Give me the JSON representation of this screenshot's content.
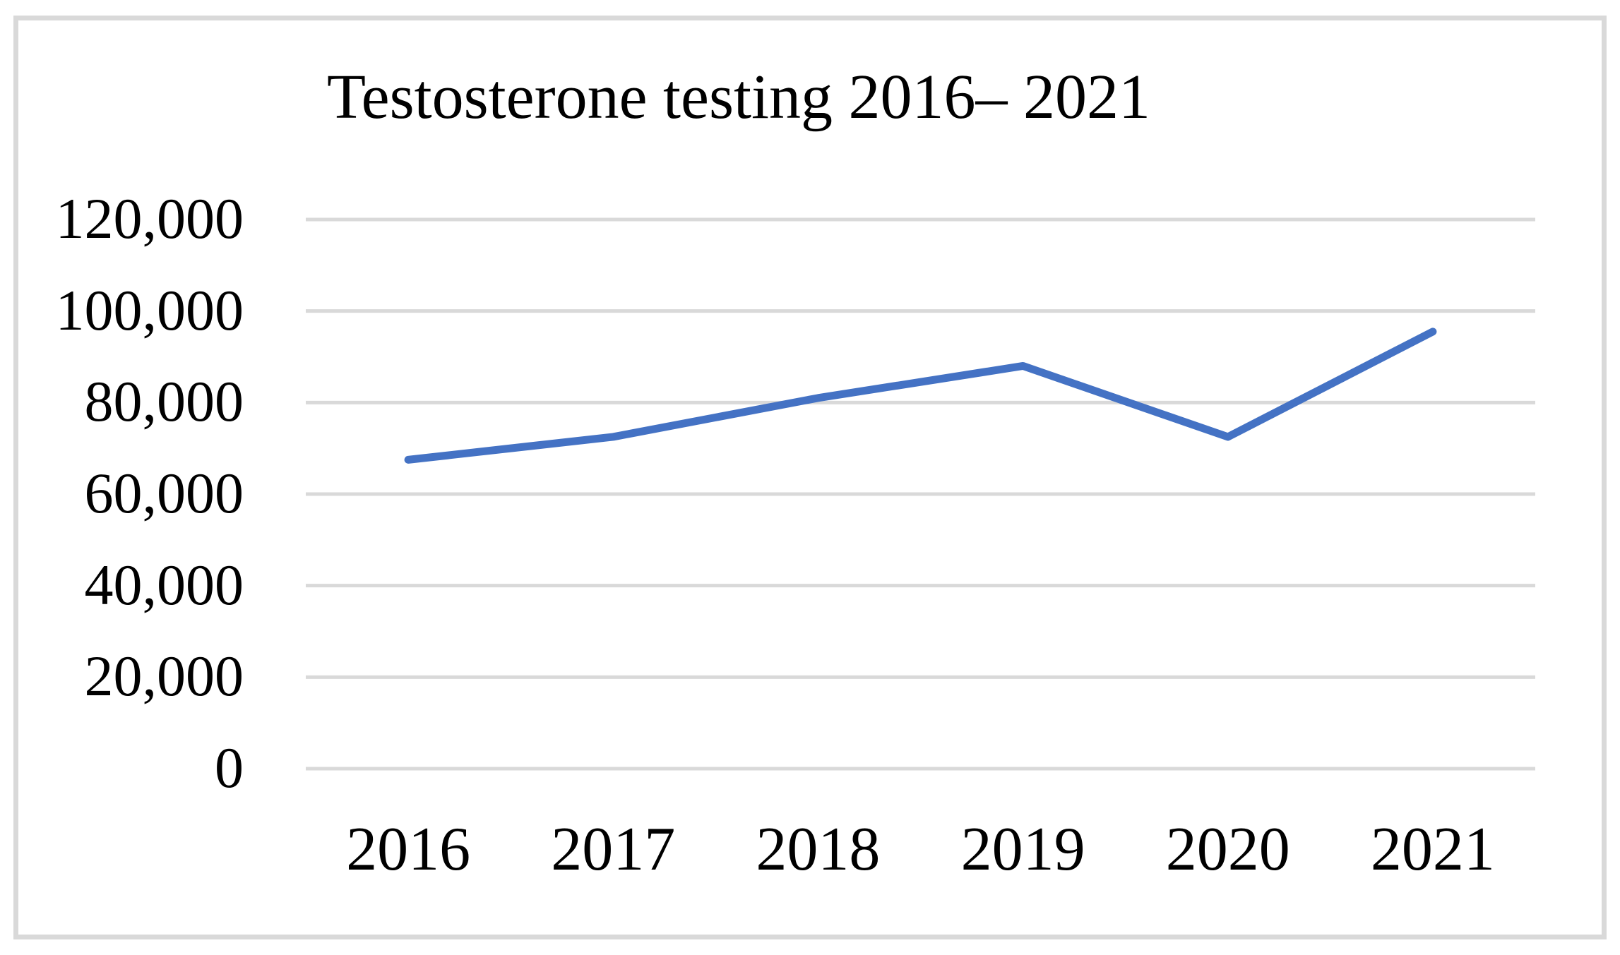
{
  "chart_data": {
    "type": "line",
    "title": "Testosterone testing 2016– 2021",
    "categories": [
      "2016",
      "2017",
      "2018",
      "2019",
      "2020",
      "2021"
    ],
    "values": [
      67500,
      72500,
      81000,
      88000,
      72500,
      95500
    ],
    "xlabel": "",
    "ylabel": "",
    "ylim": [
      0,
      120000
    ],
    "yticks": [
      0,
      20000,
      40000,
      60000,
      80000,
      100000,
      120000
    ],
    "ytick_labels": [
      "0",
      "20,000",
      "40,000",
      "60,000",
      "80,000",
      "100,000",
      "120,000"
    ],
    "grid": "horizontal",
    "legend": "none",
    "line_color": "#4472C4",
    "gridline_color": "#D9D9D9",
    "frame_color": "#D9D9D9",
    "text_color": "#000000"
  }
}
